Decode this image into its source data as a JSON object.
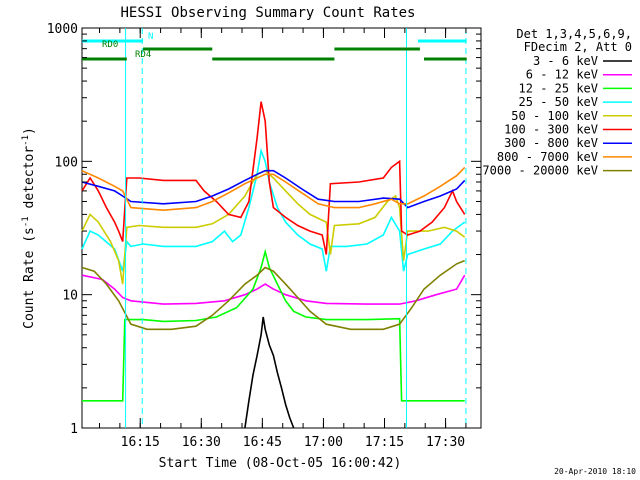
{
  "chart_data": {
    "type": "line",
    "title": "HESSI Observing Summary Count Rates",
    "xlabel": "Start Time (08-Oct-05 16:00:42)",
    "ylabel_main": "Count Rate (s",
    "ylabel_sup1": "-1",
    "ylabel_mid": " detector",
    "ylabel_sup2": "-1",
    "ylabel_end": ")",
    "y_scale": "log",
    "ylim": [
      1,
      1000
    ],
    "xlim_minutes": [
      0,
      98
    ],
    "x_ticks": [
      {
        "minute": 14.3,
        "label": "16:15"
      },
      {
        "minute": 29.3,
        "label": "16:30"
      },
      {
        "minute": 44.3,
        "label": "16:45"
      },
      {
        "minute": 59.3,
        "label": "17:00"
      },
      {
        "minute": 74.3,
        "label": "17:15"
      },
      {
        "minute": 89.3,
        "label": "17:30"
      }
    ],
    "y_ticks": [
      {
        "value": 1,
        "label": "1"
      },
      {
        "value": 10,
        "label": "10"
      },
      {
        "value": 100,
        "label": "100"
      },
      {
        "value": 1000,
        "label": "1000"
      }
    ],
    "legend_header": [
      "Det 1,3,4,5,6,9,",
      "FDecim 2, Att 0"
    ],
    "legend_position": "right",
    "series": [
      {
        "name": "3 - 6 keV",
        "color": "#000000",
        "points": [
          [
            40,
            1
          ],
          [
            41,
            1.6
          ],
          [
            42,
            2.5
          ],
          [
            43,
            3.5
          ],
          [
            44,
            5
          ],
          [
            44.5,
            6.8
          ],
          [
            45,
            5.5
          ],
          [
            46,
            4.2
          ],
          [
            47,
            3.5
          ],
          [
            48,
            2.6
          ],
          [
            49,
            2
          ],
          [
            50,
            1.5
          ],
          [
            51,
            1.2
          ],
          [
            52,
            1
          ]
        ]
      },
      {
        "name": "6 - 12 keV",
        "color": "#ff00ff",
        "points": [
          [
            0,
            14
          ],
          [
            5,
            13
          ],
          [
            8,
            11
          ],
          [
            10,
            9.5
          ],
          [
            12,
            9
          ],
          [
            20,
            8.5
          ],
          [
            28,
            8.6
          ],
          [
            35,
            9
          ],
          [
            40,
            10
          ],
          [
            43,
            11
          ],
          [
            45,
            12
          ],
          [
            47,
            11
          ],
          [
            50,
            10
          ],
          [
            55,
            9
          ],
          [
            60,
            8.6
          ],
          [
            70,
            8.5
          ],
          [
            78,
            8.5
          ],
          [
            82,
            9
          ],
          [
            87,
            10
          ],
          [
            92,
            11
          ],
          [
            94,
            14
          ]
        ]
      },
      {
        "name": "12 - 25 keV",
        "color": "#00ff00",
        "points": [
          [
            0,
            1.6
          ],
          [
            10,
            1.6
          ],
          [
            10.5,
            6.5
          ],
          [
            15,
            6.5
          ],
          [
            20,
            6.3
          ],
          [
            28,
            6.4
          ],
          [
            33,
            6.8
          ],
          [
            38,
            8
          ],
          [
            42,
            11
          ],
          [
            44,
            16
          ],
          [
            45,
            21
          ],
          [
            46,
            16
          ],
          [
            48,
            12
          ],
          [
            50,
            9
          ],
          [
            52,
            7.5
          ],
          [
            55,
            6.8
          ],
          [
            60,
            6.5
          ],
          [
            70,
            6.5
          ],
          [
            78,
            6.6
          ],
          [
            78.5,
            1.6
          ],
          [
            94,
            1.6
          ]
        ]
      },
      {
        "name": "25 - 50 keV",
        "color": "#00ffff",
        "points": [
          [
            0,
            22
          ],
          [
            2,
            30
          ],
          [
            4,
            28
          ],
          [
            8,
            22
          ],
          [
            10,
            15
          ],
          [
            11,
            25
          ],
          [
            12,
            23
          ],
          [
            15,
            24
          ],
          [
            20,
            23
          ],
          [
            28,
            23
          ],
          [
            32,
            25
          ],
          [
            35,
            30
          ],
          [
            37,
            25
          ],
          [
            39,
            28
          ],
          [
            41,
            45
          ],
          [
            43,
            80
          ],
          [
            44,
            120
          ],
          [
            45,
            100
          ],
          [
            46,
            70
          ],
          [
            48,
            45
          ],
          [
            50,
            35
          ],
          [
            53,
            28
          ],
          [
            56,
            24
          ],
          [
            59,
            22
          ],
          [
            60,
            15
          ],
          [
            61,
            23
          ],
          [
            65,
            23
          ],
          [
            70,
            24
          ],
          [
            74,
            28
          ],
          [
            76,
            38
          ],
          [
            78,
            30
          ],
          [
            79,
            15
          ],
          [
            80,
            20
          ],
          [
            84,
            22
          ],
          [
            88,
            24
          ],
          [
            91,
            30
          ],
          [
            94,
            35
          ]
        ]
      },
      {
        "name": "50 - 100 keV",
        "color": "#cccc00",
        "points": [
          [
            0,
            30
          ],
          [
            2,
            40
          ],
          [
            4,
            35
          ],
          [
            7,
            25
          ],
          [
            9,
            18
          ],
          [
            10,
            12
          ],
          [
            11,
            32
          ],
          [
            14,
            33
          ],
          [
            20,
            32
          ],
          [
            28,
            32
          ],
          [
            32,
            34
          ],
          [
            36,
            40
          ],
          [
            40,
            55
          ],
          [
            43,
            80
          ],
          [
            45,
            85
          ],
          [
            47,
            75
          ],
          [
            50,
            60
          ],
          [
            53,
            48
          ],
          [
            56,
            40
          ],
          [
            60,
            35
          ],
          [
            61,
            20
          ],
          [
            62,
            33
          ],
          [
            68,
            34
          ],
          [
            72,
            38
          ],
          [
            75,
            50
          ],
          [
            77,
            55
          ],
          [
            78,
            45
          ],
          [
            79,
            18
          ],
          [
            80,
            30
          ],
          [
            85,
            30
          ],
          [
            89,
            32
          ],
          [
            92,
            30
          ],
          [
            94,
            27
          ]
        ]
      },
      {
        "name": "100 - 300 keV",
        "color": "#ff0000",
        "points": [
          [
            0,
            60
          ],
          [
            2,
            75
          ],
          [
            4,
            60
          ],
          [
            6,
            45
          ],
          [
            8,
            35
          ],
          [
            9,
            30
          ],
          [
            10,
            25
          ],
          [
            11,
            75
          ],
          [
            14,
            75
          ],
          [
            20,
            72
          ],
          [
            28,
            72
          ],
          [
            30,
            60
          ],
          [
            33,
            50
          ],
          [
            36,
            40
          ],
          [
            39,
            38
          ],
          [
            41,
            50
          ],
          [
            43,
            150
          ],
          [
            44,
            280
          ],
          [
            45,
            200
          ],
          [
            46,
            70
          ],
          [
            47,
            45
          ],
          [
            50,
            38
          ],
          [
            53,
            33
          ],
          [
            56,
            30
          ],
          [
            59,
            28
          ],
          [
            60,
            20
          ],
          [
            61,
            68
          ],
          [
            68,
            70
          ],
          [
            74,
            75
          ],
          [
            76,
            90
          ],
          [
            78,
            100
          ],
          [
            78.5,
            30
          ],
          [
            80,
            28
          ],
          [
            83,
            30
          ],
          [
            86,
            35
          ],
          [
            89,
            45
          ],
          [
            91,
            60
          ],
          [
            92,
            50
          ],
          [
            94,
            40
          ]
        ]
      },
      {
        "name": "300 - 800 keV",
        "color": "#0000ff",
        "points": [
          [
            0,
            70
          ],
          [
            4,
            65
          ],
          [
            8,
            60
          ],
          [
            10,
            55
          ],
          [
            12,
            50
          ],
          [
            20,
            48
          ],
          [
            28,
            50
          ],
          [
            32,
            55
          ],
          [
            36,
            62
          ],
          [
            40,
            72
          ],
          [
            43,
            80
          ],
          [
            45,
            85
          ],
          [
            47,
            85
          ],
          [
            50,
            75
          ],
          [
            54,
            62
          ],
          [
            58,
            52
          ],
          [
            62,
            50
          ],
          [
            68,
            50
          ],
          [
            74,
            53
          ],
          [
            78,
            52
          ],
          [
            80,
            45
          ],
          [
            84,
            50
          ],
          [
            88,
            55
          ],
          [
            92,
            62
          ],
          [
            94,
            72
          ]
        ]
      },
      {
        "name": "800 - 7000 keV",
        "color": "#ff8800",
        "points": [
          [
            0,
            85
          ],
          [
            4,
            75
          ],
          [
            8,
            65
          ],
          [
            10,
            60
          ],
          [
            12,
            45
          ],
          [
            20,
            43
          ],
          [
            28,
            45
          ],
          [
            32,
            50
          ],
          [
            36,
            58
          ],
          [
            40,
            68
          ],
          [
            43,
            75
          ],
          [
            45,
            80
          ],
          [
            47,
            80
          ],
          [
            50,
            70
          ],
          [
            54,
            58
          ],
          [
            58,
            48
          ],
          [
            62,
            45
          ],
          [
            68,
            45
          ],
          [
            72,
            48
          ],
          [
            76,
            52
          ],
          [
            78,
            48
          ],
          [
            80,
            48
          ],
          [
            84,
            55
          ],
          [
            88,
            65
          ],
          [
            92,
            78
          ],
          [
            94,
            90
          ]
        ]
      },
      {
        "name": "7000 - 20000 keV",
        "color": "#808000",
        "points": [
          [
            0,
            16
          ],
          [
            3,
            15
          ],
          [
            6,
            12
          ],
          [
            9,
            9
          ],
          [
            12,
            6
          ],
          [
            16,
            5.5
          ],
          [
            22,
            5.5
          ],
          [
            28,
            5.8
          ],
          [
            32,
            7
          ],
          [
            36,
            9
          ],
          [
            40,
            12
          ],
          [
            43,
            14
          ],
          [
            45,
            16
          ],
          [
            47,
            15
          ],
          [
            50,
            12
          ],
          [
            53,
            9.5
          ],
          [
            56,
            7.5
          ],
          [
            60,
            6
          ],
          [
            66,
            5.5
          ],
          [
            74,
            5.5
          ],
          [
            78,
            6
          ],
          [
            81,
            8
          ],
          [
            84,
            11
          ],
          [
            88,
            14
          ],
          [
            92,
            17
          ],
          [
            94,
            18
          ]
        ]
      }
    ],
    "state_bars": [
      {
        "label": "N",
        "color": "#00ffff",
        "row": 1,
        "segments": [
          [
            0,
            15
          ],
          [
            82.5,
            94.5
          ]
        ]
      },
      {
        "label": "RD0",
        "color": "#008000",
        "row": 2,
        "segments": [
          [
            15,
            32
          ],
          [
            62,
            83
          ]
        ]
      },
      {
        "label": "RD4",
        "color": "#008000",
        "row": 3,
        "segments": [
          [
            0,
            11
          ],
          [
            32,
            62
          ],
          [
            84,
            94.5
          ]
        ]
      }
    ],
    "vlines_solid": [
      10.7,
      79.7
    ],
    "vlines_dashed": [
      14.8,
      94.3
    ]
  },
  "footer": {
    "date_stamp": "20-Apr-2010 18:10"
  }
}
